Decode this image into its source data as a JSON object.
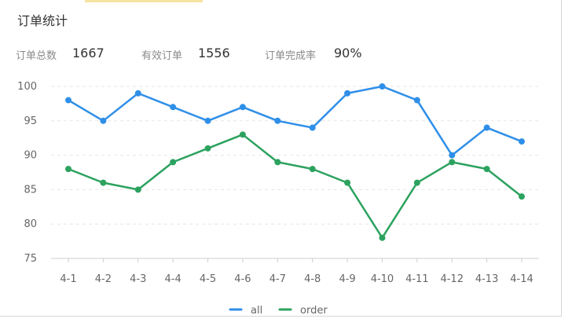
{
  "header": {
    "title": "订单统计"
  },
  "stats": [
    {
      "label": "订单总数",
      "value": "1667"
    },
    {
      "label": "有效订单",
      "value": "1556"
    },
    {
      "label": "订单完成率",
      "value": "90%"
    }
  ],
  "colors": {
    "all": "#2f8fe8",
    "order": "#2ca25f",
    "grid": "#e6e6e6",
    "axis": "#cccccc"
  },
  "chart_data": {
    "type": "line",
    "categories": [
      "4-1",
      "4-2",
      "4-3",
      "4-4",
      "4-5",
      "4-6",
      "4-7",
      "4-8",
      "4-9",
      "4-10",
      "4-11",
      "4-12",
      "4-13",
      "4-14"
    ],
    "series": [
      {
        "name": "all",
        "values": [
          98,
          95,
          99,
          97,
          95,
          97,
          95,
          94,
          99,
          100,
          98,
          90,
          94,
          92
        ]
      },
      {
        "name": "order",
        "values": [
          88,
          86,
          85,
          89,
          91,
          93,
          89,
          88,
          86,
          78,
          86,
          89,
          88,
          84
        ]
      }
    ],
    "yticks": [
      75,
      80,
      85,
      90,
      95,
      100
    ],
    "ylim": [
      75,
      100
    ],
    "grid": true,
    "legend": "bottom-center"
  }
}
